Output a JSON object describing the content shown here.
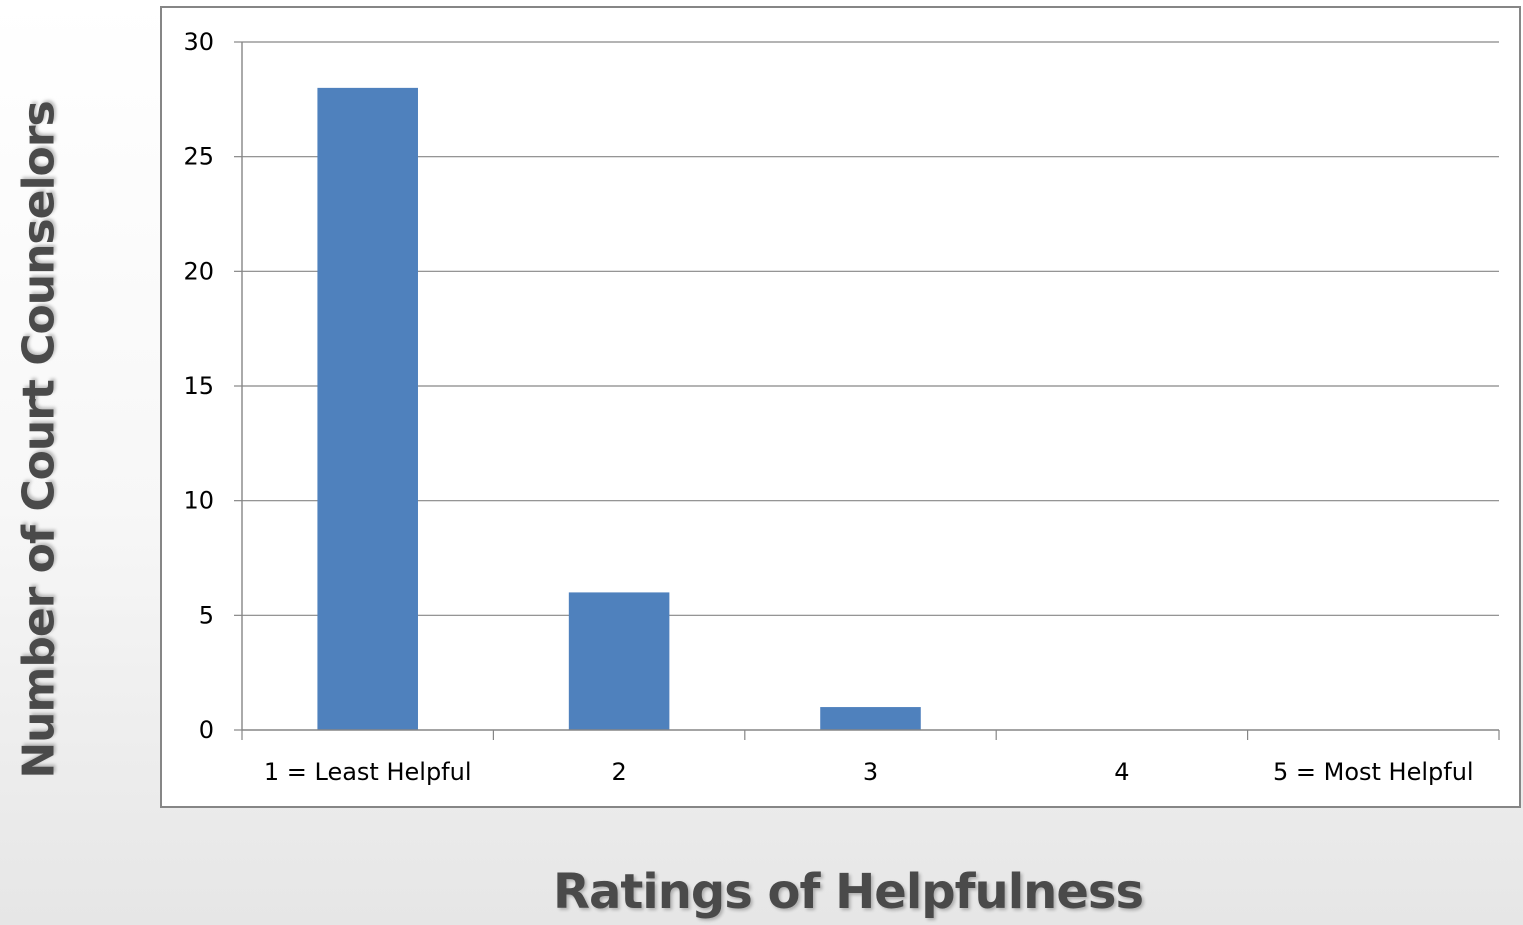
{
  "chart_data": {
    "type": "bar",
    "categories": [
      "1 = Least Helpful",
      "2",
      "3",
      "4",
      "5 = Most Helpful"
    ],
    "values": [
      28,
      6,
      1,
      0,
      0
    ],
    "title": "",
    "xlabel": "Ratings of Helpfulness",
    "ylabel": "Number of Court Counselors",
    "ylim": [
      0,
      30
    ],
    "yticks": [
      0,
      5,
      10,
      15,
      20,
      25,
      30
    ],
    "grid": true,
    "legend": "none",
    "bar_color": "#4f81bd",
    "grid_color": "#868686"
  }
}
